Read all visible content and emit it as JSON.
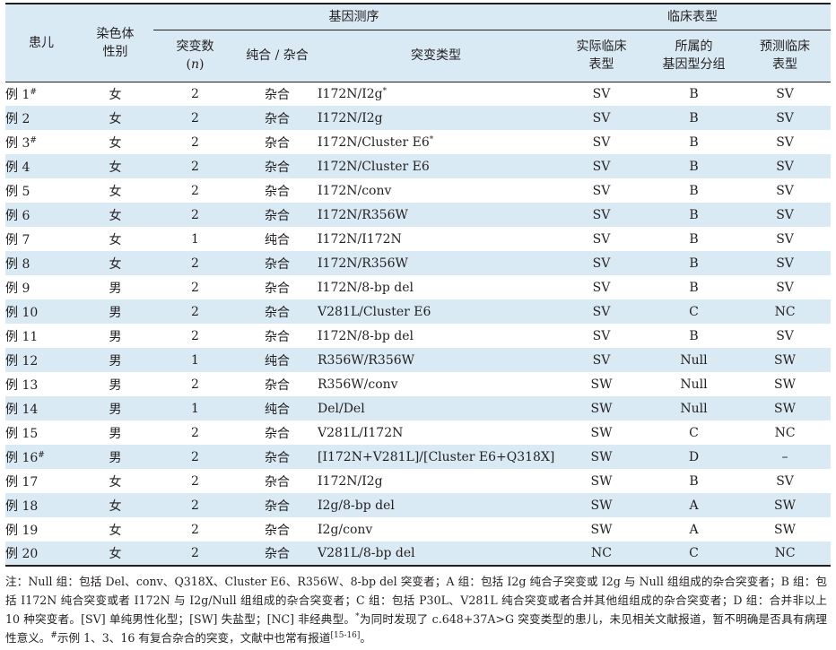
{
  "headers": {
    "patient": "患儿",
    "sex_line1": "染色体",
    "sex_line2": "性别",
    "gene_group": "基因测序",
    "clinical_group": "临床表型",
    "count_line1": "突变数",
    "count_line2": "n",
    "zyg": "纯合 / 杂合",
    "mut_type": "突变类型",
    "actual_line1": "实际临床",
    "actual_line2": "表型",
    "group_line1": "所属的",
    "group_line2": "基因型分组",
    "pred_line1": "预测临床",
    "pred_line2": "表型"
  },
  "rows": [
    {
      "case": "例 1",
      "mark": "#",
      "sex": "女",
      "n": "2",
      "zyg": "杂合",
      "mut": "I172N/I2g",
      "mut_mark": "*",
      "actual": "SV",
      "group": "B",
      "pred": "SV"
    },
    {
      "case": "例 2",
      "mark": "",
      "sex": "女",
      "n": "2",
      "zyg": "杂合",
      "mut": "I172N/I2g",
      "mut_mark": "",
      "actual": "SV",
      "group": "B",
      "pred": "SV"
    },
    {
      "case": "例 3",
      "mark": "#",
      "sex": "女",
      "n": "2",
      "zyg": "杂合",
      "mut": "I172N/Cluster E6",
      "mut_mark": "*",
      "actual": "SV",
      "group": "B",
      "pred": "SV"
    },
    {
      "case": "例 4",
      "mark": "",
      "sex": "女",
      "n": "2",
      "zyg": "杂合",
      "mut": "I172N/Cluster E6",
      "mut_mark": "",
      "actual": "SV",
      "group": "B",
      "pred": "SV"
    },
    {
      "case": "例 5",
      "mark": "",
      "sex": "女",
      "n": "2",
      "zyg": "杂合",
      "mut": "I172N/conv",
      "mut_mark": "",
      "actual": "SV",
      "group": "B",
      "pred": "SV"
    },
    {
      "case": "例 6",
      "mark": "",
      "sex": "女",
      "n": "2",
      "zyg": "杂合",
      "mut": "I172N/R356W",
      "mut_mark": "",
      "actual": "SV",
      "group": "B",
      "pred": "SV"
    },
    {
      "case": "例 7",
      "mark": "",
      "sex": "女",
      "n": "1",
      "zyg": "纯合",
      "mut": "I172N/I172N",
      "mut_mark": "",
      "actual": "SV",
      "group": "B",
      "pred": "SV"
    },
    {
      "case": "例 8",
      "mark": "",
      "sex": "女",
      "n": "2",
      "zyg": "杂合",
      "mut": "I172N/R356W",
      "mut_mark": "",
      "actual": "SV",
      "group": "B",
      "pred": "SV"
    },
    {
      "case": "例 9",
      "mark": "",
      "sex": "男",
      "n": "2",
      "zyg": "杂合",
      "mut": "I172N/8-bp del",
      "mut_mark": "",
      "actual": "SV",
      "group": "B",
      "pred": "SV"
    },
    {
      "case": "例 10",
      "mark": "",
      "sex": "男",
      "n": "2",
      "zyg": "杂合",
      "mut": "V281L/Cluster E6",
      "mut_mark": "",
      "actual": "SV",
      "group": "C",
      "pred": "NC"
    },
    {
      "case": "例 11",
      "mark": "",
      "sex": "男",
      "n": "2",
      "zyg": "杂合",
      "mut": "I172N/8-bp del",
      "mut_mark": "",
      "actual": "SV",
      "group": "B",
      "pred": "SV"
    },
    {
      "case": "例 12",
      "mark": "",
      "sex": "男",
      "n": "1",
      "zyg": "纯合",
      "mut": "R356W/R356W",
      "mut_mark": "",
      "actual": "SV",
      "group": "Null",
      "pred": "SW"
    },
    {
      "case": "例 13",
      "mark": "",
      "sex": "男",
      "n": "2",
      "zyg": "杂合",
      "mut": "R356W/conv",
      "mut_mark": "",
      "actual": "SW",
      "group": "Null",
      "pred": "SW"
    },
    {
      "case": "例 14",
      "mark": "",
      "sex": "男",
      "n": "1",
      "zyg": "纯合",
      "mut": "Del/Del",
      "mut_mark": "",
      "actual": "SW",
      "group": "Null",
      "pred": "SW"
    },
    {
      "case": "例 15",
      "mark": "",
      "sex": "男",
      "n": "2",
      "zyg": "杂合",
      "mut": "V281L/I172N",
      "mut_mark": "",
      "actual": "SW",
      "group": "C",
      "pred": "NC"
    },
    {
      "case": "例 16",
      "mark": "#",
      "sex": "男",
      "n": "2",
      "zyg": "杂合",
      "mut": "[I172N+V281L]/[Cluster E6+Q318X]",
      "mut_mark": "*",
      "actual": "SW",
      "group": "D",
      "pred": "–"
    },
    {
      "case": "例 17",
      "mark": "",
      "sex": "女",
      "n": "2",
      "zyg": "杂合",
      "mut": "I172N/I2g",
      "mut_mark": "",
      "actual": "SW",
      "group": "B",
      "pred": "SV"
    },
    {
      "case": "例 18",
      "mark": "",
      "sex": "女",
      "n": "2",
      "zyg": "杂合",
      "mut": "I2g/8-bp del",
      "mut_mark": "",
      "actual": "SW",
      "group": "A",
      "pred": "SW"
    },
    {
      "case": "例 19",
      "mark": "",
      "sex": "女",
      "n": "2",
      "zyg": "杂合",
      "mut": "I2g/conv",
      "mut_mark": "",
      "actual": "SW",
      "group": "A",
      "pred": "SW"
    },
    {
      "case": "例 20",
      "mark": "",
      "sex": "女",
      "n": "2",
      "zyg": "杂合",
      "mut": "V281L/8-bp del",
      "mut_mark": "",
      "actual": "NC",
      "group": "C",
      "pred": "NC"
    }
  ],
  "note": {
    "text_a": "注：Null 组：包括 Del、conv、Q318X、Cluster E6、R356W、8-bp del 突变者；A 组：包括 I2g 纯合子突变或 I2g 与 Null 组组成的杂合突变者；B 组：包括 I172N 纯合突变或者 I172N 与 I2g/Null 组组成的杂合突变者；C 组：包括 P30L、V281L 纯合突变或者合并其他组组成的杂合突变者；D 组：合并非以上 10 种突变者。[SV] 单纯男性化型；[SW] 失盐型；[NC] 非经典型。",
    "star": "*",
    "text_b": "为同时发现了 c.648+37A>G 突变类型的患儿，未见相关文献报道，暂不明确是否具有病理性意义。",
    "hash": "#",
    "text_c": "示例 1、3、16 有复合杂合的突变，文献中也常有报道",
    "ref": "[15-16]",
    "text_d": "。"
  }
}
